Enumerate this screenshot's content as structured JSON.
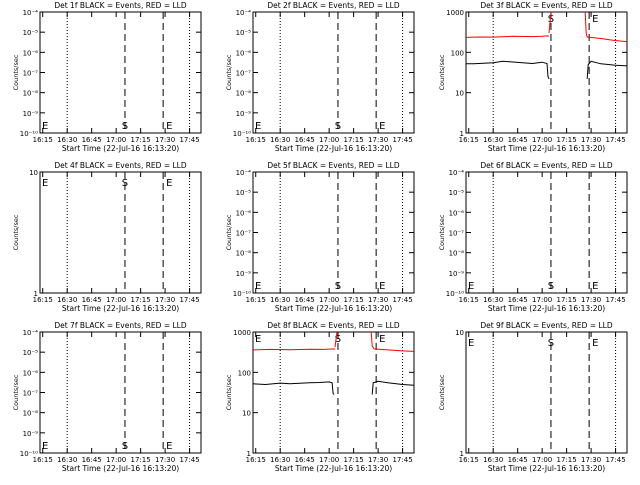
{
  "colors": {
    "events": "#000000",
    "lld": "#ff0000",
    "background": "#ffffff"
  },
  "chart_data": [
    {
      "type": "line",
      "title": "Det 1f BLACK = Events, RED = LLD",
      "ylabel": "Counts/sec",
      "xlabel": "Start Time (22-Jul-16 16:13:20)",
      "xlim": [
        16.2222,
        17.8667
      ],
      "xticks": [
        16.25,
        16.5,
        16.75,
        17.0,
        17.25,
        17.5,
        17.75
      ],
      "xticklabels": [
        "16:15",
        "16:30",
        "16:45",
        "17:00",
        "17:15",
        "17:30",
        "17:45"
      ],
      "yscale": "log",
      "ylim": [
        1e-10,
        0.0001
      ],
      "yticks": [
        1e-10,
        1e-09,
        1e-08,
        1e-07,
        1e-06,
        1e-05,
        0.0001
      ],
      "yticklabels": [
        "10⁻¹⁰",
        "10⁻⁹",
        "10⁻⁸",
        "10⁻⁷",
        "10⁻⁶",
        "10⁻⁵",
        "10⁻⁴"
      ],
      "dotted_lines_x": [
        16.5,
        17.75
      ],
      "dashed_markers": [
        {
          "x": 17.09,
          "label": "S"
        },
        {
          "x": 17.48,
          "label": "E"
        }
      ],
      "corner_labels": [
        {
          "x": 16.2222,
          "label": "E"
        }
      ],
      "series": []
    },
    {
      "type": "line",
      "title": "Det 2f BLACK = Events, RED = LLD",
      "ylabel": "Counts/sec",
      "xlabel": "Start Time (22-Jul-16 16:13:20)",
      "xlim": [
        16.2222,
        17.8667
      ],
      "xticks": [
        16.25,
        16.5,
        16.75,
        17.0,
        17.25,
        17.5,
        17.75
      ],
      "xticklabels": [
        "16:15",
        "16:30",
        "16:45",
        "17:00",
        "17:15",
        "17:30",
        "17:45"
      ],
      "yscale": "log",
      "ylim": [
        1e-10,
        0.0001
      ],
      "yticks": [
        1e-10,
        1e-09,
        1e-08,
        1e-07,
        1e-06,
        1e-05,
        0.0001
      ],
      "yticklabels": [
        "10⁻¹⁰",
        "10⁻⁹",
        "10⁻⁸",
        "10⁻⁷",
        "10⁻⁶",
        "10⁻⁵",
        "10⁻⁴"
      ],
      "dotted_lines_x": [
        16.5,
        17.75
      ],
      "dashed_markers": [
        {
          "x": 17.09,
          "label": "S"
        },
        {
          "x": 17.48,
          "label": "E"
        }
      ],
      "corner_labels": [
        {
          "x": 16.2222,
          "label": "E"
        }
      ],
      "series": []
    },
    {
      "type": "line",
      "title": "Det 3f BLACK = Events, RED = LLD",
      "ylabel": "Counts/sec",
      "xlabel": "Start Time (22-Jul-16 16:13:20)",
      "xlim": [
        16.2222,
        17.8667
      ],
      "xticks": [
        16.25,
        16.5,
        16.75,
        17.0,
        17.25,
        17.5,
        17.75
      ],
      "xticklabels": [
        "16:15",
        "16:30",
        "16:45",
        "17:00",
        "17:15",
        "17:30",
        "17:45"
      ],
      "yscale": "log",
      "ylim": [
        1,
        1000
      ],
      "yticks": [
        1,
        10,
        100,
        1000
      ],
      "yticklabels": [
        "1",
        "10",
        "100",
        "1000"
      ],
      "dotted_lines_x": [
        16.5,
        17.75
      ],
      "dashed_markers": [
        {
          "x": 17.09,
          "label": "S"
        },
        {
          "x": 17.48,
          "label": "E"
        }
      ],
      "corner_labels": [],
      "series": [
        {
          "name": "LLD",
          "color": "#ff0000",
          "segments": [
            {
              "x": [
                16.2222,
                16.35,
                16.5,
                16.7,
                16.9,
                17.0,
                17.05,
                17.07
              ],
              "y": [
                235,
                240,
                238,
                250,
                245,
                250,
                255,
                250
              ]
            },
            {
              "x": [
                17.07,
                17.09
              ],
              "y": [
                300,
                1000
              ]
            },
            {
              "x": [
                17.44,
                17.45,
                17.46,
                17.6,
                17.75,
                17.8667
              ],
              "y": [
                1000,
                300,
                240,
                220,
                195,
                185
              ]
            }
          ]
        },
        {
          "name": "Events",
          "color": "#000000",
          "segments": [
            {
              "x": [
                16.2222,
                16.3,
                16.5,
                16.6,
                16.8,
                16.9,
                17.0,
                17.05,
                17.06,
                17.07
              ],
              "y": [
                52,
                52,
                55,
                60,
                55,
                53,
                57,
                53,
                25,
                22
              ]
            },
            {
              "x": [
                17.46,
                17.47,
                17.5,
                17.6,
                17.75,
                17.8667
              ],
              "y": [
                22,
                50,
                60,
                52,
                48,
                46
              ]
            }
          ]
        }
      ]
    },
    {
      "type": "line",
      "title": "Det 4f BLACK = Events, RED = LLD",
      "ylabel": "Counts/sec",
      "xlabel": "Start Time (22-Jul-16 16:13:20)",
      "xlim": [
        16.2222,
        17.8667
      ],
      "xticks": [
        16.25,
        16.5,
        16.75,
        17.0,
        17.25,
        17.5,
        17.75
      ],
      "xticklabels": [
        "16:15",
        "16:30",
        "16:45",
        "17:00",
        "17:15",
        "17:30",
        "17:45"
      ],
      "yscale": "log",
      "ylim": [
        1,
        10
      ],
      "yticks": [
        1,
        10
      ],
      "yticklabels": [
        "1",
        "10"
      ],
      "dotted_lines_x": [
        16.5,
        17.75
      ],
      "dashed_markers": [
        {
          "x": 17.09,
          "label": "S"
        },
        {
          "x": 17.48,
          "label": "E"
        }
      ],
      "corner_labels": [
        {
          "x": 16.2222,
          "label": "E"
        }
      ],
      "series": []
    },
    {
      "type": "line",
      "title": "Det 5f BLACK = Events, RED = LLD",
      "ylabel": "Counts/sec",
      "xlabel": "Start Time (22-Jul-16 16:13:20)",
      "xlim": [
        16.2222,
        17.8667
      ],
      "xticks": [
        16.25,
        16.5,
        16.75,
        17.0,
        17.25,
        17.5,
        17.75
      ],
      "xticklabels": [
        "16:15",
        "16:30",
        "16:45",
        "17:00",
        "17:15",
        "17:30",
        "17:45"
      ],
      "yscale": "log",
      "ylim": [
        1e-10,
        0.0001
      ],
      "yticks": [
        1e-10,
        1e-09,
        1e-08,
        1e-07,
        1e-06,
        1e-05,
        0.0001
      ],
      "yticklabels": [
        "10⁻¹⁰",
        "10⁻⁹",
        "10⁻⁸",
        "10⁻⁷",
        "10⁻⁶",
        "10⁻⁵",
        "10⁻⁴"
      ],
      "dotted_lines_x": [
        16.5,
        17.75
      ],
      "dashed_markers": [
        {
          "x": 17.09,
          "label": "S"
        },
        {
          "x": 17.48,
          "label": "E"
        }
      ],
      "corner_labels": [
        {
          "x": 16.2222,
          "label": "E"
        }
      ],
      "series": []
    },
    {
      "type": "line",
      "title": "Det 6f BLACK = Events, RED = LLD",
      "ylabel": "Counts/sec",
      "xlabel": "Start Time (22-Jul-16 16:13:20)",
      "xlim": [
        16.2222,
        17.8667
      ],
      "xticks": [
        16.25,
        16.5,
        16.75,
        17.0,
        17.25,
        17.5,
        17.75
      ],
      "xticklabels": [
        "16:15",
        "16:30",
        "16:45",
        "17:00",
        "17:15",
        "17:30",
        "17:45"
      ],
      "yscale": "log",
      "ylim": [
        1e-10,
        0.0001
      ],
      "yticks": [
        1e-10,
        1e-09,
        1e-08,
        1e-07,
        1e-06,
        1e-05,
        0.0001
      ],
      "yticklabels": [
        "10⁻¹⁰",
        "10⁻⁹",
        "10⁻⁸",
        "10⁻⁷",
        "10⁻⁶",
        "10⁻⁵",
        "10⁻⁴"
      ],
      "dotted_lines_x": [
        16.5,
        17.75
      ],
      "dashed_markers": [
        {
          "x": 17.09,
          "label": "S"
        },
        {
          "x": 17.48,
          "label": "E"
        }
      ],
      "corner_labels": [
        {
          "x": 16.2222,
          "label": "E"
        }
      ],
      "series": []
    },
    {
      "type": "line",
      "title": "Det 7f BLACK = Events, RED = LLD",
      "ylabel": "Counts/sec",
      "xlabel": "Start Time (22-Jul-16 16:13:20)",
      "xlim": [
        16.2222,
        17.8667
      ],
      "xticks": [
        16.25,
        16.5,
        16.75,
        17.0,
        17.25,
        17.5,
        17.75
      ],
      "xticklabels": [
        "16:15",
        "16:30",
        "16:45",
        "17:00",
        "17:15",
        "17:30",
        "17:45"
      ],
      "yscale": "log",
      "ylim": [
        1e-10,
        0.0001
      ],
      "yticks": [
        1e-10,
        1e-09,
        1e-08,
        1e-07,
        1e-06,
        1e-05,
        0.0001
      ],
      "yticklabels": [
        "10⁻¹⁰",
        "10⁻⁹",
        "10⁻⁸",
        "10⁻⁷",
        "10⁻⁶",
        "10⁻⁵",
        "10⁻⁴"
      ],
      "dotted_lines_x": [
        16.5,
        17.75
      ],
      "dashed_markers": [
        {
          "x": 17.09,
          "label": "S"
        },
        {
          "x": 17.48,
          "label": "E"
        }
      ],
      "corner_labels": [
        {
          "x": 16.2222,
          "label": "E"
        }
      ],
      "series": []
    },
    {
      "type": "line",
      "title": "Det 8f BLACK = Events, RED = LLD",
      "ylabel": "Counts/sec",
      "xlabel": "Start Time (22-Jul-16 16:13:20)",
      "xlim": [
        16.2222,
        17.8667
      ],
      "xticks": [
        16.25,
        16.5,
        16.75,
        17.0,
        17.25,
        17.5,
        17.75
      ],
      "xticklabels": [
        "16:15",
        "16:30",
        "16:45",
        "17:00",
        "17:15",
        "17:30",
        "17:45"
      ],
      "yscale": "log",
      "ylim": [
        1,
        1000
      ],
      "yticks": [
        1,
        10,
        100,
        1000
      ],
      "yticklabels": [
        "1",
        "10",
        "100",
        "1000"
      ],
      "dotted_lines_x": [
        16.5,
        17.75
      ],
      "dashed_markers": [
        {
          "x": 17.09,
          "label": "S"
        },
        {
          "x": 17.48,
          "label": "E"
        }
      ],
      "corner_labels": [
        {
          "x": 16.2222,
          "label": "E"
        }
      ],
      "series": [
        {
          "name": "LLD",
          "color": "#ff0000",
          "segments": [
            {
              "x": [
                16.2222,
                16.4,
                16.6,
                16.8,
                16.95,
                17.05,
                17.06
              ],
              "y": [
                360,
                370,
                365,
                375,
                370,
                380,
                370
              ]
            },
            {
              "x": [
                17.06,
                17.08
              ],
              "y": [
                420,
                1000
              ]
            },
            {
              "x": [
                17.43,
                17.44,
                17.46,
                17.6,
                17.75,
                17.8667
              ],
              "y": [
                1000,
                450,
                380,
                360,
                340,
                330
              ]
            }
          ]
        },
        {
          "name": "Events",
          "color": "#000000",
          "segments": [
            {
              "x": [
                16.2222,
                16.35,
                16.5,
                16.6,
                16.8,
                16.9,
                17.0,
                17.03,
                17.04,
                17.05
              ],
              "y": [
                52,
                50,
                54,
                52,
                55,
                56,
                58,
                55,
                30,
                28
              ]
            },
            {
              "x": [
                17.44,
                17.45,
                17.5,
                17.6,
                17.75,
                17.8667
              ],
              "y": [
                28,
                55,
                60,
                55,
                50,
                48
              ]
            }
          ]
        }
      ]
    },
    {
      "type": "line",
      "title": "Det 9f BLACK = Events, RED = LLD",
      "ylabel": "Counts/sec",
      "xlabel": "Start Time (22-Jul-16 16:13:20)",
      "xlim": [
        16.2222,
        17.8667
      ],
      "xticks": [
        16.25,
        16.5,
        16.75,
        17.0,
        17.25,
        17.5,
        17.75
      ],
      "xticklabels": [
        "16:15",
        "16:30",
        "16:45",
        "17:00",
        "17:15",
        "17:30",
        "17:45"
      ],
      "yscale": "log",
      "ylim": [
        1,
        10
      ],
      "yticks": [
        1,
        10
      ],
      "yticklabels": [
        "1",
        "10"
      ],
      "dotted_lines_x": [
        16.5,
        17.75
      ],
      "dashed_markers": [
        {
          "x": 17.09,
          "label": "S"
        },
        {
          "x": 17.48,
          "label": "E"
        }
      ],
      "corner_labels": [
        {
          "x": 16.2222,
          "label": "E"
        }
      ],
      "series": []
    }
  ]
}
